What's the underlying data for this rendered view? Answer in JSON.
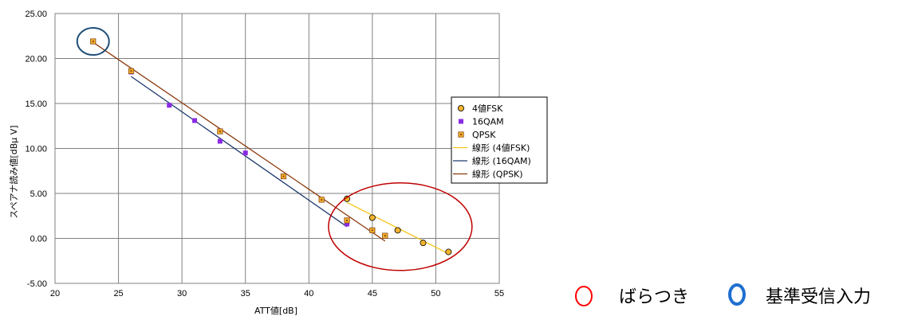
{
  "chart_data": {
    "type": "scatter",
    "xlabel": "ATT値[dB]",
    "ylabel": "スペアナ読み値[dBμ V]",
    "xlim": [
      20,
      55
    ],
    "ylim": [
      -5,
      25
    ],
    "x_ticks": [
      "20",
      "25",
      "30",
      "35",
      "40",
      "45",
      "50",
      "55"
    ],
    "y_ticks": [
      "-5.00",
      "0.00",
      "5.00",
      "10.00",
      "15.00",
      "20.00",
      "25.00"
    ],
    "grid": true,
    "legend_position": "right",
    "series": [
      {
        "name": "4値FSK",
        "marker": "circle",
        "color": "#f2b32e",
        "x": [
          43,
          45,
          47,
          49,
          51
        ],
        "y": [
          4.4,
          2.3,
          0.9,
          -0.5,
          -1.5
        ]
      },
      {
        "name": "16QAM",
        "marker": "square",
        "color": "#8a2be2",
        "x": [
          26,
          29,
          31,
          33,
          35,
          43
        ],
        "y": [
          18.5,
          14.8,
          13.1,
          10.8,
          9.5,
          1.6
        ]
      },
      {
        "name": "QPSK",
        "marker": "square-dot",
        "color": "#f2b32e",
        "x": [
          23,
          26,
          33,
          38,
          41,
          43,
          45,
          46
        ],
        "y": [
          21.9,
          18.6,
          11.9,
          6.9,
          4.3,
          2.0,
          0.9,
          0.3
        ]
      }
    ],
    "trendlines": [
      {
        "name": "線形 (4値FSK)",
        "color": "#f5c518",
        "x": [
          43,
          51
        ],
        "y": [
          4.0,
          -1.7
        ]
      },
      {
        "name": "線形 (16QAM)",
        "color": "#1f3a6e",
        "x": [
          26,
          43
        ],
        "y": [
          18.0,
          1.3
        ]
      },
      {
        "name": "線形 (QPSK)",
        "color": "#8b3a0f",
        "x": [
          23,
          46
        ],
        "y": [
          21.8,
          -0.3
        ]
      }
    ],
    "annotations": [
      {
        "shape": "ellipse",
        "color": "#c00000",
        "text": "ばらつき"
      },
      {
        "shape": "ellipse",
        "color": "#1f4e79",
        "text": "基準受信入力"
      }
    ]
  }
}
